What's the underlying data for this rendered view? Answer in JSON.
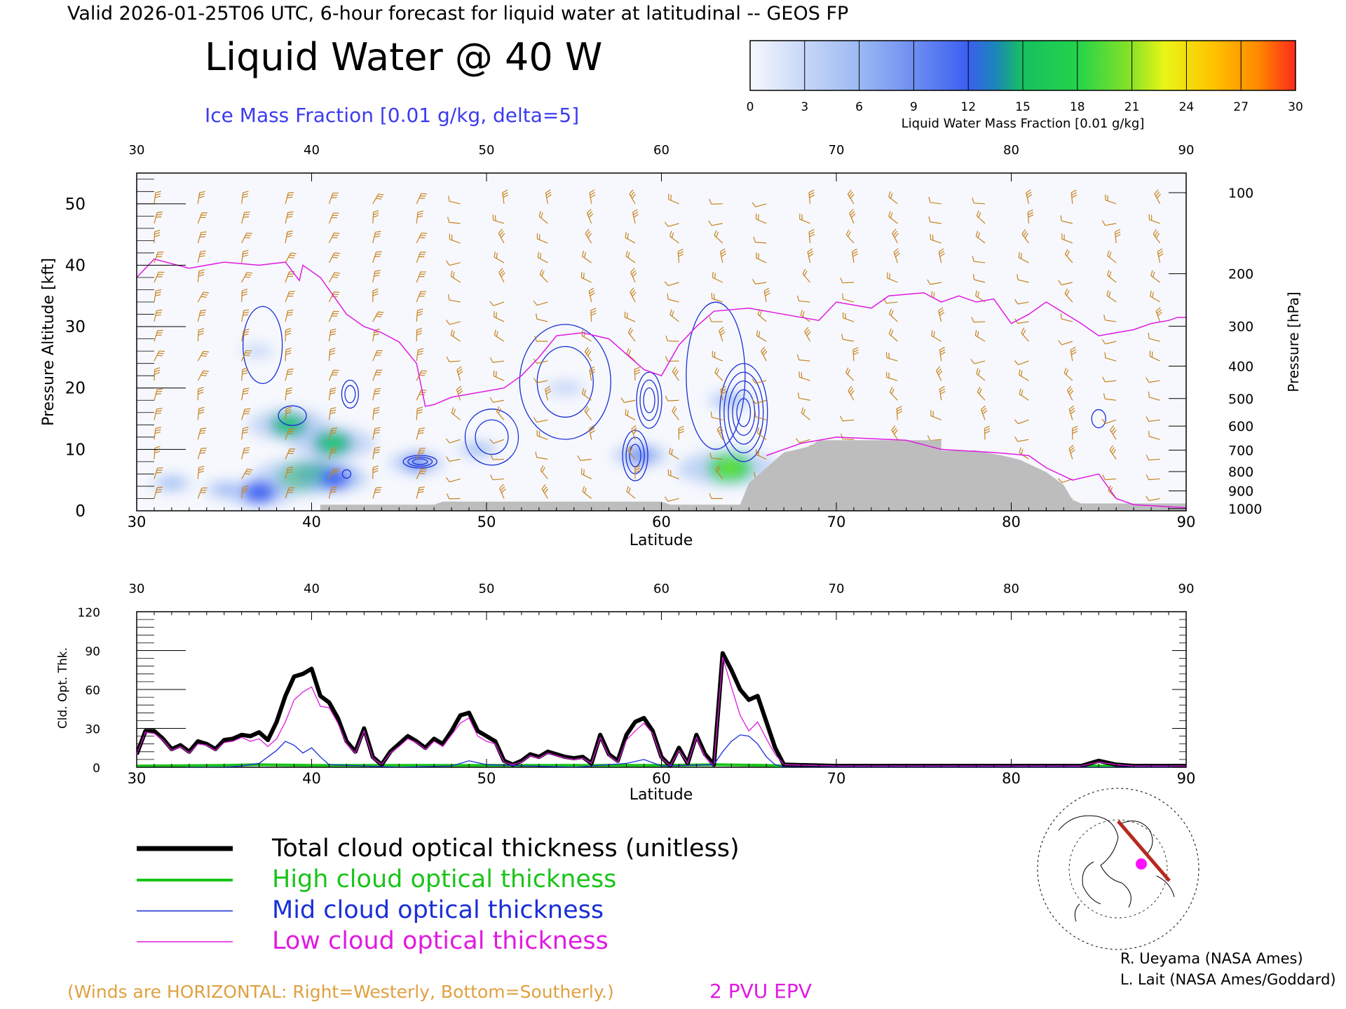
{
  "header": {
    "valid_line": "Valid 2026-01-25T06 UTC, 6-hour forecast for liquid water at latitudinal -- GEOS FP",
    "title": "Liquid Water @ 40 W",
    "ice_label": "Ice Mass Fraction [0.01 g/kg, delta=5]"
  },
  "colorbar": {
    "ticks": [
      "0",
      "3",
      "6",
      "9",
      "12",
      "15",
      "18",
      "21",
      "24",
      "27",
      "30"
    ],
    "label": "Liquid Water Mass Fraction [0.01 g/kg]",
    "colors": [
      "#f6f8fd",
      "#c7d7f7",
      "#9cb9f3",
      "#6e8ef0",
      "#3a5ff0",
      "#17a69a",
      "#22d34a",
      "#6fe12e",
      "#eaf517",
      "#ffb000",
      "#ff4a1a"
    ]
  },
  "top_panel": {
    "y_left_label": "Pressure Altitude [kft]",
    "y_right_label": "Pressure [hPa]",
    "x_label": "Latitude"
  },
  "bottom_panel": {
    "y_label": "Cld. Opt. Thk.",
    "x_label": "Latitude"
  },
  "legend": {
    "total": "Total cloud optical thickness (unitless)",
    "high": "High cloud optical thickness",
    "mid": "Mid cloud optical thickness",
    "low": "Low cloud optical thickness"
  },
  "footer": {
    "winds_note": "(Winds are HORIZONTAL: Right=Westerly, Bottom=Southerly.)",
    "pvu_label": "2 PVU EPV",
    "credit1": "R. Ueyama (NASA Ames)",
    "credit2": "L. Lait (NASA Ames/Goddard)"
  },
  "colors": {
    "wind": "#c8821e",
    "epv": "#e01be0",
    "ice_contour": "#1a2fd6",
    "terrain": "#bdbdbd",
    "total": "#000000",
    "high": "#19c419",
    "mid": "#1a2fd6",
    "low": "#e01be0"
  },
  "chart_data": [
    {
      "type": "heatmap",
      "title": "Liquid Water @ 40 W",
      "xlabel": "Latitude",
      "ylabel": "Pressure Altitude [kft]",
      "y2label": "Pressure [hPa]",
      "xlim": [
        30,
        90
      ],
      "ylim": [
        0,
        55
      ],
      "x_ticks": [
        30,
        40,
        50,
        60,
        70,
        80,
        90
      ],
      "y_ticks": [
        0,
        10,
        20,
        30,
        40,
        50
      ],
      "pressure_ticks": [
        100,
        200,
        300,
        400,
        500,
        600,
        700,
        800,
        900,
        1000
      ],
      "liquid_water_blobs": [
        {
          "lat": 39.3,
          "kft": 5.5,
          "value": 18
        },
        {
          "lat": 40.3,
          "kft": 5.8,
          "value": 16
        },
        {
          "lat": 41.3,
          "kft": 5.2,
          "value": 12
        },
        {
          "lat": 38.7,
          "kft": 14.0,
          "value": 15
        },
        {
          "lat": 41.2,
          "kft": 11.0,
          "value": 16
        },
        {
          "lat": 37.0,
          "kft": 3.0,
          "value": 13
        },
        {
          "lat": 46.0,
          "kft": 7.8,
          "value": 9
        },
        {
          "lat": 58.8,
          "kft": 9.0,
          "value": 9
        },
        {
          "lat": 63.9,
          "kft": 7.0,
          "value": 19
        },
        {
          "lat": 63.9,
          "kft": 18.0,
          "value": 6
        },
        {
          "lat": 54.5,
          "kft": 20.0,
          "value": 4
        },
        {
          "lat": 32.0,
          "kft": 4.5,
          "value": 5
        },
        {
          "lat": 35.0,
          "kft": 3.5,
          "value": 5
        },
        {
          "lat": 49.5,
          "kft": 10.0,
          "value": 5
        },
        {
          "lat": 61.9,
          "kft": 6.5,
          "value": 4
        },
        {
          "lat": 36.9,
          "kft": 26.0,
          "value": 3
        }
      ],
      "epv_2pvu_line": [
        [
          30,
          38
        ],
        [
          31,
          41
        ],
        [
          33,
          39.5
        ],
        [
          35,
          40.5
        ],
        [
          37,
          40
        ],
        [
          38.5,
          40.5
        ],
        [
          39.3,
          37.5
        ],
        [
          39.5,
          40
        ],
        [
          40.5,
          38
        ],
        [
          42,
          32
        ],
        [
          43,
          30
        ],
        [
          44,
          29
        ],
        [
          45,
          27.5
        ],
        [
          46,
          24
        ],
        [
          46.5,
          17
        ],
        [
          47,
          17.3
        ],
        [
          48,
          18.5
        ],
        [
          50,
          19.5
        ],
        [
          51,
          20
        ],
        [
          52,
          22
        ],
        [
          53,
          25
        ],
        [
          54,
          28.5
        ],
        [
          55.5,
          29
        ],
        [
          57,
          28
        ],
        [
          59,
          23
        ],
        [
          60,
          22
        ],
        [
          61,
          27
        ],
        [
          62,
          30
        ],
        [
          63,
          32.5
        ],
        [
          65,
          33
        ],
        [
          67,
          32
        ],
        [
          69,
          31
        ],
        [
          70,
          34
        ],
        [
          72,
          33
        ],
        [
          73,
          35
        ],
        [
          75,
          35.5
        ],
        [
          76,
          34
        ],
        [
          77,
          35
        ],
        [
          78,
          34
        ],
        [
          79,
          34.5
        ],
        [
          80,
          30.5
        ],
        [
          81,
          32
        ],
        [
          82,
          34
        ],
        [
          84,
          30.5
        ],
        [
          85,
          28.5
        ],
        [
          87,
          29.5
        ],
        [
          88,
          30.5
        ],
        [
          89,
          31
        ],
        [
          89.5,
          31.5
        ],
        [
          90,
          31.5
        ]
      ],
      "epv_lower_line": [
        [
          66,
          9
        ],
        [
          68,
          11
        ],
        [
          70,
          12
        ],
        [
          74,
          11.5
        ],
        [
          76,
          10
        ],
        [
          79,
          9.5
        ],
        [
          81,
          9
        ],
        [
          82,
          7
        ],
        [
          83.5,
          5
        ],
        [
          85,
          6
        ],
        [
          86,
          2
        ],
        [
          87,
          1
        ],
        [
          90,
          0.5
        ]
      ],
      "terrain": [
        [
          40.5,
          1
        ],
        [
          47,
          1
        ],
        [
          47.5,
          1.5
        ],
        [
          60,
          1.5
        ],
        [
          60.5,
          1
        ],
        [
          64.5,
          1
        ],
        [
          65,
          4.5
        ],
        [
          66,
          7
        ],
        [
          67,
          9.5
        ],
        [
          68.5,
          10.5
        ],
        [
          69,
          11.5
        ],
        [
          76,
          11.5
        ],
        [
          76,
          9.8
        ],
        [
          78,
          9.8
        ],
        [
          79.5,
          9
        ],
        [
          80.5,
          8.3
        ],
        [
          82,
          6.3
        ],
        [
          83,
          4.2
        ],
        [
          83.5,
          1.8
        ],
        [
          84,
          1.2
        ],
        [
          90,
          1.2
        ]
      ]
    },
    {
      "type": "line",
      "xlabel": "Latitude",
      "ylabel": "Cld. Opt. Thk.",
      "xlim": [
        30,
        90
      ],
      "ylim": [
        0,
        120
      ],
      "x_ticks": [
        30,
        40,
        50,
        60,
        70,
        80,
        90
      ],
      "y_ticks": [
        0,
        30,
        60,
        90,
        120
      ],
      "series": [
        {
          "name": "Total cloud optical thickness (unitless)",
          "x": [
            30,
            30.5,
            31,
            31.5,
            32,
            32.5,
            33,
            33.5,
            34,
            34.5,
            35,
            35.5,
            36,
            36.5,
            37,
            37.5,
            38,
            38.5,
            39,
            39.5,
            40,
            40.5,
            41,
            41.5,
            42,
            42.5,
            43,
            43.5,
            44,
            44.5,
            45,
            45.5,
            46,
            46.5,
            47,
            47.5,
            48,
            48.5,
            49,
            49.5,
            50,
            50.5,
            51,
            51.5,
            52,
            52.5,
            53,
            53.5,
            54,
            54.5,
            55,
            55.5,
            56,
            56.5,
            57,
            57.5,
            58,
            58.5,
            59,
            59.5,
            60,
            60.5,
            61,
            61.5,
            62,
            62.5,
            63,
            63.5,
            64,
            64.5,
            65,
            65.5,
            66,
            66.5,
            67,
            70,
            80,
            84,
            85,
            86,
            87,
            90
          ],
          "y": [
            10,
            28,
            28,
            22,
            14,
            17,
            12,
            20,
            18,
            14,
            21,
            22,
            25,
            24,
            27,
            21,
            35,
            55,
            70,
            72,
            76,
            55,
            50,
            38,
            20,
            12,
            30,
            8,
            2,
            12,
            18,
            24,
            20,
            15,
            22,
            18,
            28,
            40,
            42,
            28,
            24,
            20,
            5,
            2,
            5,
            10,
            8,
            12,
            10,
            8,
            7,
            8,
            3,
            25,
            10,
            5,
            25,
            35,
            38,
            28,
            8,
            1,
            15,
            3,
            25,
            10,
            2,
            88,
            75,
            60,
            52,
            55,
            35,
            15,
            2,
            1,
            1,
            1,
            5,
            2,
            1,
            1
          ]
        },
        {
          "name": "High cloud optical thickness",
          "x": [
            30,
            35,
            37,
            40,
            45,
            50,
            60,
            63,
            66,
            67,
            90
          ],
          "y": [
            1,
            1.5,
            2,
            1.5,
            1.5,
            1.5,
            1.5,
            2,
            1.5,
            1,
            1
          ]
        },
        {
          "name": "Mid cloud optical thickness",
          "x": [
            30,
            35,
            36,
            37,
            38,
            38.5,
            39,
            39.5,
            40,
            40.5,
            41,
            45,
            48,
            49,
            50,
            55,
            58,
            59,
            60,
            63,
            63.5,
            64,
            64.5,
            65,
            65.5,
            66,
            66.5,
            67,
            90
          ],
          "y": [
            0,
            0,
            1,
            3,
            13,
            20,
            17,
            11,
            15,
            8,
            2,
            0,
            1,
            5,
            2,
            0,
            3,
            6,
            1,
            2,
            12,
            20,
            25,
            24,
            18,
            8,
            2,
            0,
            0
          ]
        },
        {
          "name": "Low cloud optical thickness",
          "x": [
            30,
            30.5,
            31,
            31.5,
            32,
            32.5,
            33,
            33.5,
            34,
            34.5,
            35,
            35.5,
            36,
            36.5,
            37,
            37.5,
            38,
            38.5,
            39,
            39.5,
            40,
            40.5,
            41,
            41.5,
            42,
            42.5,
            43,
            43.5,
            44,
            44.5,
            45,
            45.5,
            46,
            46.5,
            47,
            47.5,
            48,
            48.5,
            49,
            49.5,
            50,
            50.5,
            51,
            51.5,
            52,
            52.5,
            53,
            53.5,
            54,
            54.5,
            55,
            55.5,
            56,
            56.5,
            57,
            57.5,
            58,
            58.5,
            59,
            59.5,
            60,
            60.5,
            61,
            61.5,
            62,
            62.5,
            63,
            63.5,
            64,
            64.5,
            65,
            65.5,
            66,
            66.5,
            67,
            70,
            80,
            84,
            85,
            86,
            87,
            90
          ],
          "y": [
            10,
            27,
            26,
            21,
            13,
            16,
            11,
            18,
            17,
            13,
            19,
            20,
            23,
            20,
            22,
            16,
            22,
            35,
            52,
            58,
            62,
            47,
            46,
            34,
            18,
            11,
            28,
            7,
            2,
            11,
            16,
            22,
            19,
            14,
            20,
            16,
            25,
            34,
            38,
            24,
            20,
            18,
            4,
            2,
            4,
            9,
            7,
            11,
            9,
            7,
            6,
            7,
            3,
            23,
            9,
            4,
            21,
            28,
            34,
            26,
            7,
            1,
            13,
            3,
            23,
            8,
            1,
            85,
            62,
            40,
            28,
            35,
            22,
            10,
            2,
            1,
            1,
            1,
            4,
            2,
            1,
            1
          ]
        }
      ]
    }
  ]
}
